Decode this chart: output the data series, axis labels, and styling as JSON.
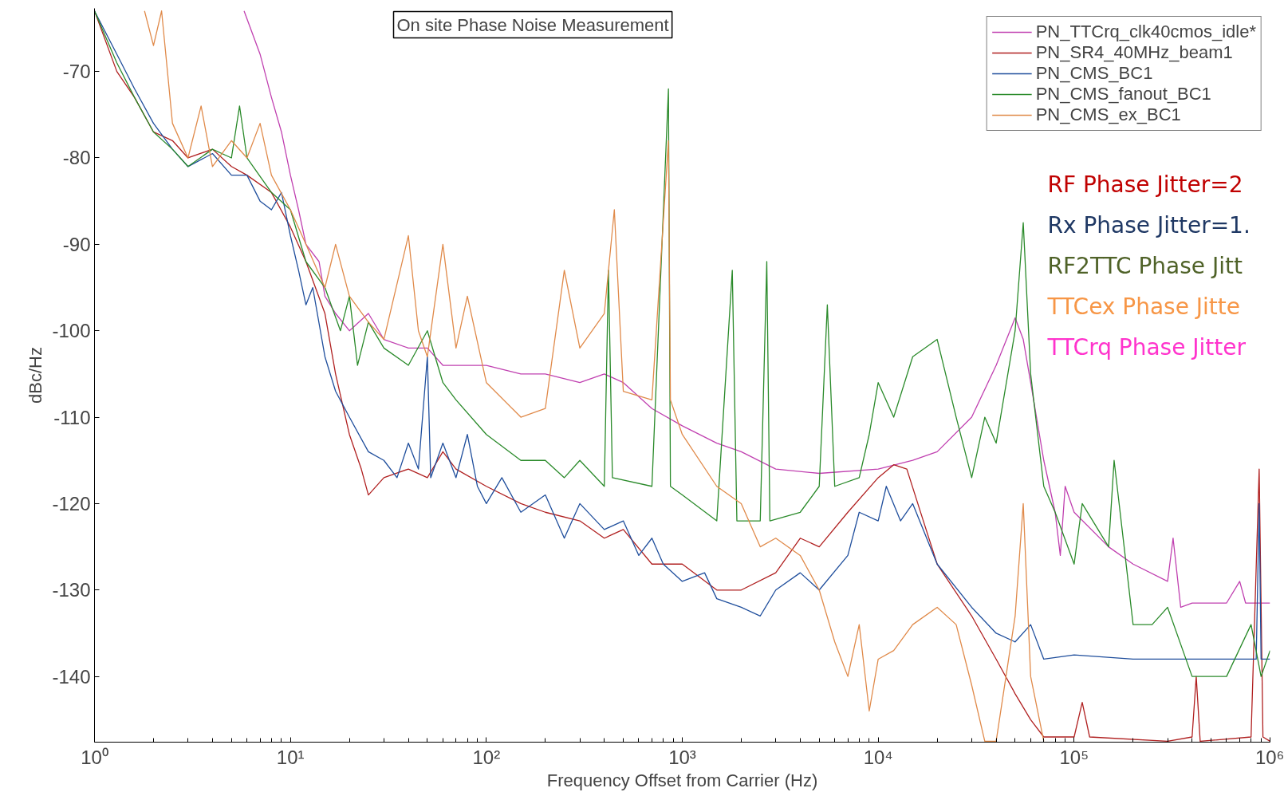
{
  "chart_data": {
    "type": "line",
    "title": "On site Phase Noise Measurement",
    "xlabel": "Frequency Offset from Carrier (Hz)",
    "ylabel": "dBc/Hz",
    "log": "x",
    "grid": false,
    "legend": "top right",
    "line_style": "solid",
    "marker": "none",
    "xlim": [
      1,
      1000000
    ],
    "xticks": [
      {
        "value": 1,
        "label": "10⁰"
      },
      {
        "value": 10,
        "label": "10¹"
      },
      {
        "value": 100,
        "label": "10²"
      },
      {
        "value": 1000,
        "label": "10³"
      },
      {
        "value": 10000,
        "label": "10⁴"
      },
      {
        "value": 100000,
        "label": "10⁵"
      },
      {
        "value": 1000000,
        "label": "10⁶"
      }
    ],
    "ylim": [
      -147.6,
      -62.7
    ],
    "yticks": [
      -70,
      -80,
      -90,
      -100,
      -110,
      -120,
      -130,
      -140
    ],
    "annotations": [
      "RF Phase Jitter=2",
      "Rx Phase Jitter=1.",
      "RF2TTC Phase Jitt",
      "TTCex Phase Jitte",
      "TTCrq Phase Jitter"
    ],
    "series": [
      {
        "name": "PN_TTCrq_clk40cmos_idle*",
        "color": "#c040b0",
        "x": [
          5.8,
          7,
          8,
          9,
          10,
          11,
          12,
          14,
          15,
          17,
          20,
          25,
          30,
          40,
          50,
          60,
          80,
          100,
          150,
          200,
          300,
          400,
          500,
          700,
          1000,
          1500,
          2000,
          3000,
          5000,
          10000,
          15000,
          20000,
          30000,
          40000,
          50000,
          55000,
          60000,
          70000,
          80000,
          85000,
          90000,
          100000,
          150000,
          200000,
          300000,
          320000,
          350000,
          400000,
          600000,
          700000,
          750000,
          1000000
        ],
        "values": [
          -63,
          -68,
          -73,
          -77,
          -82,
          -86,
          -90,
          -92,
          -96,
          -98,
          -100,
          -98,
          -101,
          -102,
          -102,
          -104,
          -104,
          -104,
          -105,
          -105,
          -106,
          -105,
          -106,
          -109,
          -111,
          -113,
          -114,
          -116,
          -116.5,
          -116,
          -115,
          -114,
          -110,
          -104,
          -98.5,
          -101,
          -106,
          -115,
          -121,
          -126,
          -118,
          -121,
          -125,
          -127,
          -129,
          -124,
          -132,
          -131.5,
          -131.5,
          -129,
          -131.5,
          -131.5
        ]
      },
      {
        "name": "PN_SR4_40MHz_beam1",
        "color": "#b02020",
        "x": [
          1,
          1.3,
          1.6,
          2,
          2.5,
          3,
          4,
          5,
          6,
          8,
          10,
          12,
          15,
          17,
          20,
          23,
          25,
          30,
          40,
          50,
          60,
          70,
          100,
          150,
          200,
          300,
          400,
          500,
          700,
          1000,
          1500,
          2000,
          3000,
          4000,
          5000,
          7000,
          10000,
          12000,
          14000,
          17000,
          20000,
          30000,
          40000,
          50000,
          60000,
          70000,
          100000,
          110000,
          120000,
          300000,
          400000,
          420000,
          440000,
          800000,
          880000,
          920000,
          1000000
        ],
        "values": [
          -63,
          -70,
          -73,
          -77,
          -78,
          -80,
          -79,
          -81,
          -82,
          -84,
          -88,
          -92,
          -98,
          -105,
          -112,
          -116,
          -119,
          -117,
          -116,
          -117,
          -114,
          -116,
          -118,
          -120,
          -121,
          -122,
          -124,
          -123,
          -127,
          -127,
          -130,
          -130,
          -128,
          -124,
          -125,
          -121,
          -117,
          -115.5,
          -116,
          -122,
          -127,
          -133,
          -138,
          -142,
          -145,
          -147,
          -147,
          -143,
          -147,
          -147.5,
          -147,
          -140,
          -147.5,
          -147,
          -116,
          -147,
          -147.5
        ]
      },
      {
        "name": "PN_CMS_BC1",
        "color": "#1f4e9c",
        "x": [
          1,
          1.3,
          1.6,
          2,
          2.5,
          3,
          4,
          5,
          6,
          7,
          8,
          9,
          10,
          11,
          12,
          13,
          15,
          17,
          20,
          25,
          30,
          35,
          40,
          45,
          50,
          52,
          60,
          70,
          80,
          90,
          100,
          120,
          150,
          200,
          250,
          300,
          400,
          500,
          600,
          700,
          800,
          1000,
          1300,
          1500,
          2000,
          2500,
          3000,
          4000,
          5000,
          7000,
          8000,
          10000,
          11000,
          13000,
          15000,
          20000,
          30000,
          40000,
          50000,
          60000,
          70000,
          100000,
          200000,
          400000,
          700000,
          850000,
          880000,
          900000,
          1000000
        ],
        "values": [
          -63,
          -68,
          -72,
          -76,
          -79,
          -81,
          -79.5,
          -82,
          -82,
          -85,
          -86,
          -84,
          -89,
          -93,
          -97,
          -95,
          -103,
          -107,
          -110,
          -114,
          -115,
          -117,
          -113,
          -116,
          -103,
          -117,
          -113,
          -117,
          -112,
          -118,
          -120,
          -117,
          -121,
          -119,
          -124,
          -120,
          -123,
          -122,
          -126,
          -124,
          -127,
          -129,
          -128,
          -131,
          -132,
          -133,
          -130,
          -128,
          -130,
          -126,
          -121,
          -122,
          -118,
          -122,
          -120,
          -127,
          -132,
          -135,
          -136,
          -134,
          -138,
          -137.5,
          -138,
          -138,
          -138,
          -138,
          -120,
          -138,
          -138
        ]
      },
      {
        "name": "PN_CMS_fanout_BC1",
        "color": "#2a8a2a",
        "x": [
          1,
          1.3,
          1.6,
          2,
          2.5,
          3,
          4,
          5,
          5.5,
          6,
          8,
          10,
          12,
          15,
          18,
          20,
          22,
          25,
          30,
          40,
          50,
          60,
          70,
          100,
          150,
          200,
          250,
          300,
          400,
          420,
          440,
          700,
          850,
          870,
          1000,
          1500,
          1800,
          1900,
          2500,
          2700,
          2800,
          4000,
          5000,
          5500,
          6000,
          8000,
          9000,
          10000,
          12000,
          15000,
          20000,
          25000,
          30000,
          35000,
          40000,
          50000,
          55000,
          60000,
          70000,
          80000,
          100000,
          110000,
          150000,
          160000,
          180000,
          200000,
          250000,
          300000,
          400000,
          600000,
          800000,
          900000,
          1000000
        ],
        "values": [
          -63,
          -69,
          -73,
          -77,
          -79,
          -81,
          -79,
          -80,
          -74,
          -80,
          -84,
          -86,
          -92,
          -95,
          -100,
          -96,
          -104,
          -99,
          -102,
          -104,
          -100,
          -106,
          -108,
          -112,
          -115,
          -115,
          -117,
          -115,
          -118,
          -93,
          -117,
          -118,
          -72,
          -118,
          -119,
          -122,
          -93,
          -122,
          -122,
          -92,
          -122,
          -121,
          -118,
          -97,
          -118,
          -117,
          -112,
          -106,
          -110,
          -103,
          -101,
          -110,
          -117,
          -110,
          -113,
          -100,
          -87.5,
          -105,
          -118,
          -121,
          -127,
          -120,
          -125,
          -115,
          -125,
          -134,
          -134,
          -132,
          -140,
          -140,
          -134,
          -140,
          -137
        ]
      },
      {
        "name": "PN_CMS_ex_BC1",
        "color": "#e08a4a",
        "x": [
          1.8,
          2,
          2.2,
          2.5,
          3,
          3.5,
          4,
          5,
          6,
          7,
          8,
          10,
          12,
          15,
          17,
          20,
          25,
          30,
          40,
          45,
          50,
          60,
          70,
          80,
          100,
          150,
          200,
          250,
          300,
          400,
          450,
          500,
          700,
          850,
          870,
          1000,
          1500,
          2000,
          2500,
          3000,
          4000,
          5000,
          6000,
          7000,
          8000,
          9000,
          10000,
          12000,
          15000,
          20000,
          25000,
          30000,
          35000,
          40000,
          50000,
          55000,
          60000,
          70000
        ],
        "values": [
          -63,
          -67,
          -63,
          -76,
          -80,
          -74,
          -81,
          -78,
          -80,
          -76,
          -82,
          -86,
          -90,
          -95,
          -90,
          -96,
          -99,
          -101,
          -89,
          -100,
          -103,
          -90,
          -102,
          -96,
          -106,
          -110,
          -109,
          -93,
          -102,
          -98,
          -86,
          -107,
          -108,
          -78,
          -108,
          -112,
          -118,
          -120,
          -125,
          -124,
          -126,
          -130,
          -136,
          -140,
          -134,
          -144,
          -138,
          -137,
          -134,
          -132,
          -134,
          -141,
          -147.5,
          -147.5,
          -133,
          -120,
          -140,
          -147.5
        ]
      }
    ]
  }
}
